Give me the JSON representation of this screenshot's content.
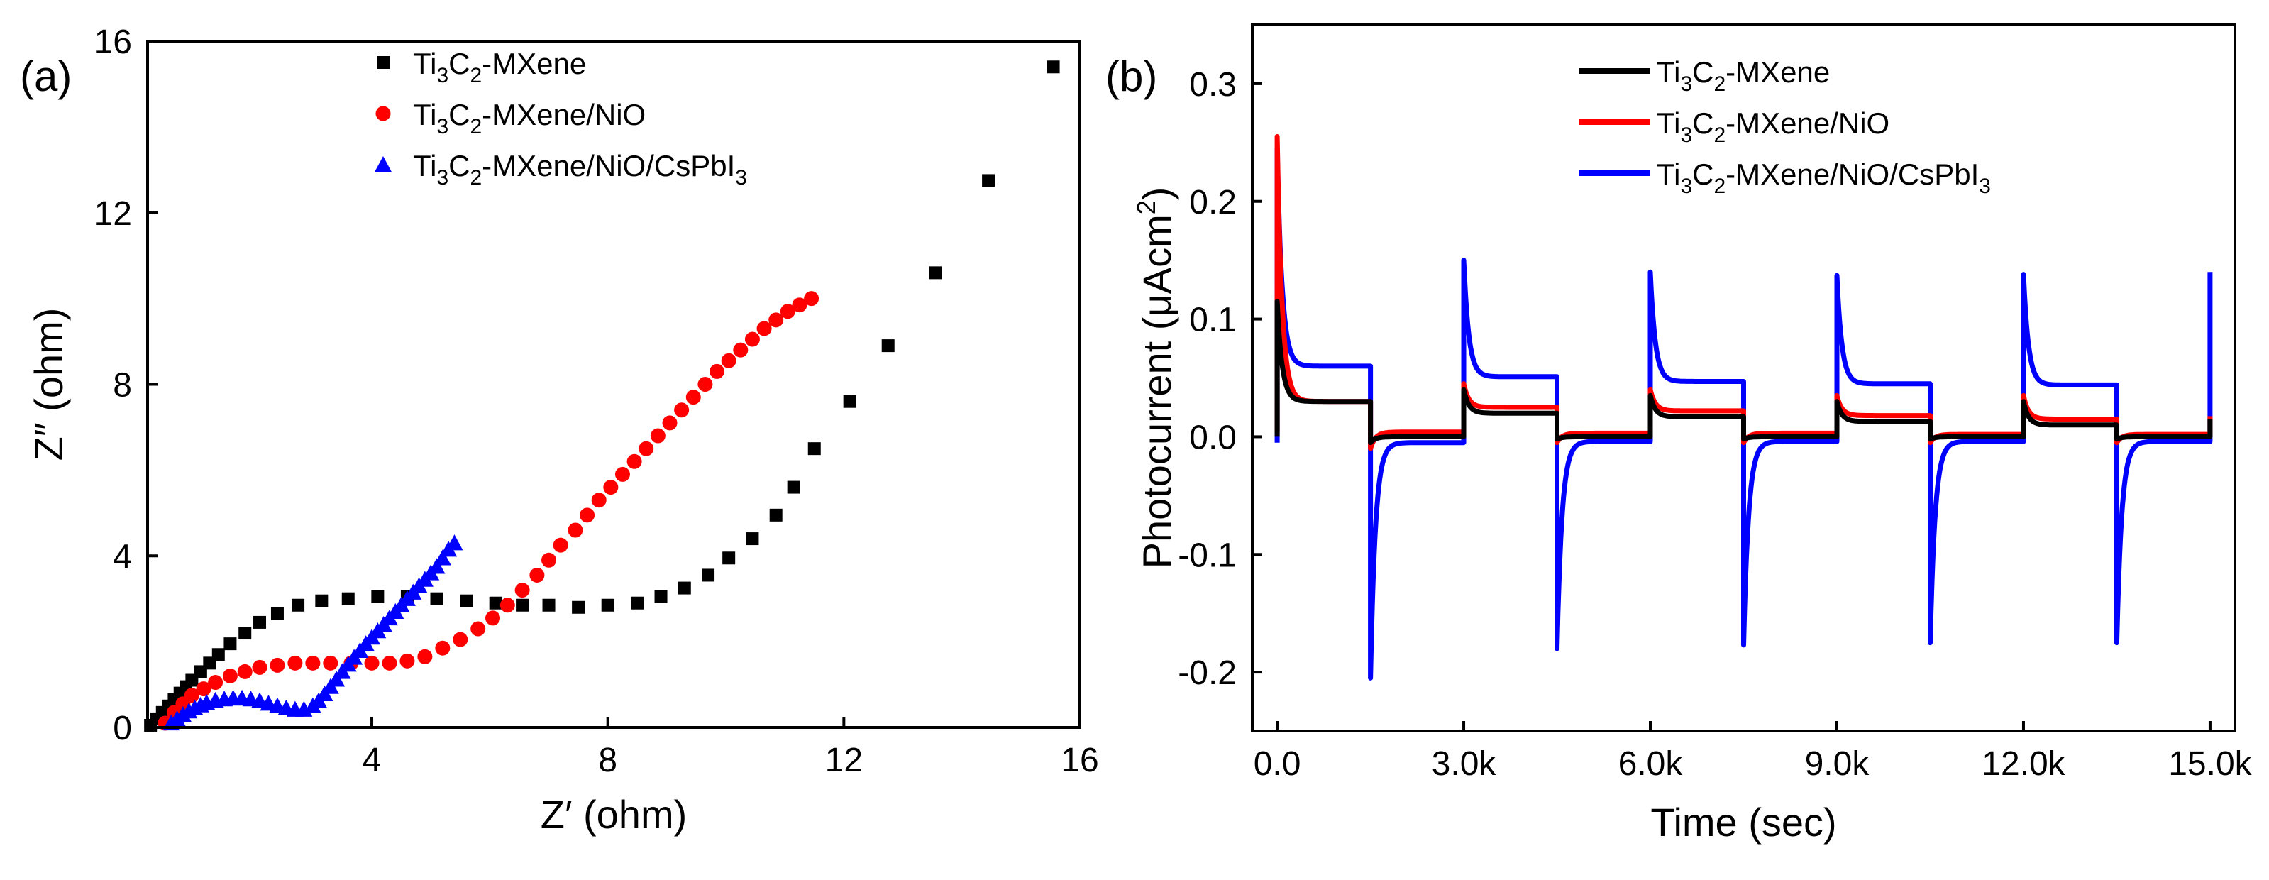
{
  "chart_data": [
    {
      "panel_label": "(a)",
      "type": "scatter",
      "xlabel": "Z′ (ohm)",
      "ylabel": "Z″ (ohm)",
      "xlim": [
        0.2,
        16
      ],
      "ylim": [
        0,
        16
      ],
      "xticks": [
        4,
        8,
        12,
        16
      ],
      "yticks": [
        0,
        4,
        8,
        12,
        16
      ],
      "legend_position": "top-center",
      "legend": [
        {
          "name": "Ti3C2-MXene",
          "base": "Ti",
          "sub1": "3",
          "mid": "C",
          "sub2": "2",
          "tail": "-MXene",
          "sub3": "",
          "marker": "square",
          "color": "#000000"
        },
        {
          "name": "Ti3C2-MXene/NiO",
          "base": "Ti",
          "sub1": "3",
          "mid": "C",
          "sub2": "2",
          "tail": "-MXene/NiO",
          "sub3": "",
          "marker": "circle",
          "color": "#ff0000"
        },
        {
          "name": "Ti3C2-MXene/NiO/CsPbI3",
          "base": "Ti",
          "sub1": "3",
          "mid": "C",
          "sub2": "2",
          "tail": "-MXene/NiO/CsPbI",
          "sub3": "3",
          "marker": "triangle",
          "color": "#0000ff"
        }
      ],
      "series": [
        {
          "name": "Ti3C2-MXene",
          "marker": "square",
          "color": "#000000",
          "x": [
            0.25,
            0.35,
            0.45,
            0.55,
            0.65,
            0.75,
            0.85,
            0.95,
            1.1,
            1.25,
            1.4,
            1.6,
            1.85,
            2.1,
            2.4,
            2.75,
            3.15,
            3.6,
            4.1,
            4.6,
            5.1,
            5.6,
            6.1,
            6.55,
            7.0,
            7.5,
            8.0,
            8.5,
            8.9,
            9.3,
            9.7,
            10.05,
            10.45,
            10.85,
            11.15,
            11.5,
            12.1,
            12.75,
            13.55,
            14.45,
            15.55
          ],
          "y": [
            0.05,
            0.2,
            0.35,
            0.5,
            0.65,
            0.8,
            0.95,
            1.1,
            1.3,
            1.5,
            1.7,
            1.95,
            2.2,
            2.45,
            2.65,
            2.85,
            2.95,
            3.0,
            3.05,
            3.05,
            3.0,
            2.95,
            2.9,
            2.85,
            2.85,
            2.8,
            2.85,
            2.9,
            3.05,
            3.25,
            3.55,
            3.95,
            4.4,
            4.95,
            5.6,
            6.5,
            7.6,
            8.9,
            10.6,
            12.75,
            15.4
          ]
        },
        {
          "name": "Ti3C2-MXene/NiO",
          "marker": "circle",
          "color": "#ff0000",
          "x": [
            0.5,
            0.65,
            0.8,
            0.95,
            1.15,
            1.35,
            1.6,
            1.85,
            2.1,
            2.4,
            2.7,
            3.0,
            3.3,
            3.65,
            4.0,
            4.3,
            4.6,
            4.9,
            5.2,
            5.5,
            5.8,
            6.05,
            6.3,
            6.55,
            6.8,
            7.0,
            7.2,
            7.45,
            7.65,
            7.85,
            8.05,
            8.25,
            8.45,
            8.65,
            8.85,
            9.05,
            9.25,
            9.45,
            9.65,
            9.85,
            10.05,
            10.25,
            10.45,
            10.65,
            10.85,
            11.05,
            11.25,
            11.45
          ],
          "y": [
            0.1,
            0.35,
            0.55,
            0.75,
            0.9,
            1.05,
            1.2,
            1.3,
            1.4,
            1.45,
            1.5,
            1.5,
            1.5,
            1.5,
            1.5,
            1.5,
            1.55,
            1.65,
            1.85,
            2.05,
            2.3,
            2.55,
            2.85,
            3.2,
            3.55,
            3.9,
            4.25,
            4.6,
            4.95,
            5.3,
            5.6,
            5.9,
            6.2,
            6.5,
            6.8,
            7.1,
            7.4,
            7.7,
            8.0,
            8.3,
            8.55,
            8.8,
            9.05,
            9.3,
            9.5,
            9.7,
            9.85,
            10.0
          ]
        },
        {
          "name": "Ti3C2-MXene/NiO/CsPbI3",
          "marker": "triangle",
          "color": "#0000ff",
          "x": [
            0.6,
            0.7,
            0.8,
            0.9,
            1.0,
            1.1,
            1.2,
            1.35,
            1.5,
            1.65,
            1.8,
            1.95,
            2.1,
            2.25,
            2.4,
            2.55,
            2.7,
            2.85,
            3.0,
            3.1,
            3.2,
            3.3,
            3.4,
            3.5,
            3.6,
            3.7,
            3.8,
            3.9,
            4.0,
            4.1,
            4.2,
            4.3,
            4.4,
            4.5,
            4.6,
            4.7,
            4.8,
            4.9,
            5.0,
            5.1,
            5.2,
            5.3,
            5.4
          ],
          "y": [
            0.1,
            0.2,
            0.3,
            0.38,
            0.45,
            0.52,
            0.58,
            0.63,
            0.66,
            0.68,
            0.68,
            0.66,
            0.62,
            0.56,
            0.5,
            0.45,
            0.42,
            0.42,
            0.5,
            0.62,
            0.78,
            0.95,
            1.12,
            1.3,
            1.47,
            1.63,
            1.79,
            1.95,
            2.1,
            2.25,
            2.4,
            2.55,
            2.7,
            2.85,
            3.0,
            3.15,
            3.3,
            3.45,
            3.6,
            3.75,
            3.95,
            4.15,
            4.3
          ]
        }
      ]
    },
    {
      "panel_label": "(b)",
      "type": "line",
      "xlabel": "Time (sec)",
      "ylabel": "Photocurrent (μAcm²)",
      "ylabel_base": "Photocurrent (μAcm",
      "ylabel_sup": "2",
      "ylabel_close": ")",
      "xlim": [
        -400,
        15400
      ],
      "ylim": [
        -0.25,
        0.35
      ],
      "xticks": [
        0,
        3000,
        6000,
        9000,
        12000,
        15000
      ],
      "xticklabels": [
        "0.0",
        "3.0k",
        "6.0k",
        "9.0k",
        "12.0k",
        "15.0k"
      ],
      "yticks": [
        -0.2,
        -0.1,
        0.0,
        0.1,
        0.2,
        0.3
      ],
      "yticklabels": [
        "-0.2",
        "-0.1",
        "0.0",
        "0.1",
        "0.2",
        "0.3"
      ],
      "legend_position": "top-center",
      "light_on_off_period_sec": 1500,
      "legend": [
        {
          "name": "Ti3C2-MXene",
          "base": "Ti",
          "sub1": "3",
          "mid": "C",
          "sub2": "2",
          "tail": "-MXene",
          "sub3": "",
          "color": "#000000"
        },
        {
          "name": "Ti3C2-MXene/NiO",
          "base": "Ti",
          "sub1": "3",
          "mid": "C",
          "sub2": "2",
          "tail": "-MXene/NiO",
          "sub3": "",
          "color": "#ff0000"
        },
        {
          "name": "Ti3C2-MXene/NiO/CsPbI3",
          "base": "Ti",
          "sub1": "3",
          "mid": "C",
          "sub2": "2",
          "tail": "-MXene/NiO/CsPbI",
          "sub3": "3",
          "color": "#0000ff"
        }
      ],
      "series": [
        {
          "name": "Ti3C2-MXene",
          "color": "#000000",
          "on_start": [
            0.115,
            0.04,
            0.035,
            0.03,
            0.03
          ],
          "on_plateau": [
            0.03,
            0.02,
            0.017,
            0.013,
            0.01
          ],
          "off_start": [
            -0.005,
            -0.002,
            -0.002,
            -0.002,
            -0.002
          ],
          "off_plateau": [
            0.0,
            0.0,
            0.0,
            0.0,
            0.0
          ]
        },
        {
          "name": "Ti3C2-MXene/NiO",
          "color": "#ff0000",
          "on_start": [
            0.255,
            0.045,
            0.04,
            0.035,
            0.035
          ],
          "on_plateau": [
            0.03,
            0.025,
            0.022,
            0.018,
            0.015
          ],
          "off_start": [
            -0.01,
            -0.005,
            -0.005,
            -0.005,
            -0.005
          ],
          "off_plateau": [
            0.004,
            0.003,
            0.003,
            0.002,
            0.002
          ]
        },
        {
          "name": "Ti3C2-MXene/NiO/CsPbI3",
          "color": "#0000ff",
          "on_start": [
            0.245,
            0.15,
            0.14,
            0.137,
            0.138
          ],
          "on_plateau": [
            0.06,
            0.051,
            0.047,
            0.045,
            0.044
          ],
          "off_start": [
            -0.205,
            -0.18,
            -0.177,
            -0.175,
            -0.175
          ],
          "off_plateau": [
            -0.005,
            -0.004,
            -0.004,
            -0.004,
            -0.004
          ],
          "final_spike": 0.14
        }
      ]
    }
  ]
}
